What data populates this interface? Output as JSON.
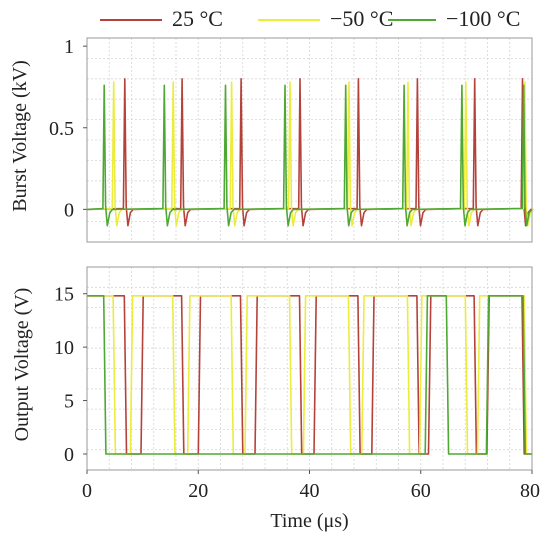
{
  "chart_data": [
    {
      "type": "line",
      "ylabel": "Burst Voltage (kV)",
      "xlim": [
        0,
        80
      ],
      "ylim": [
        -0.2,
        1.05
      ],
      "yticks": [
        0,
        0.5,
        1
      ],
      "ytick_labels": [
        "0",
        "0.5",
        "1"
      ],
      "grid": true,
      "series": [
        {
          "name": "25 °C",
          "color": "#b5423a",
          "pulse_times": [
            6.9,
            17.2,
            27.8,
            38.4,
            48.9,
            59.5,
            69.8,
            78.4
          ],
          "peak": 0.8
        },
        {
          "name": "−50 °C",
          "color": "#ecec3c",
          "pulse_times": [
            4.9,
            15.6,
            26.1,
            36.6,
            47.2,
            57.8,
            68.2,
            78.8
          ],
          "peak": 0.78
        },
        {
          "name": "−100 °C",
          "color": "#4fa834",
          "pulse_times": [
            3.2,
            14.0,
            25.0,
            35.7,
            46.6,
            57.1,
            67.5,
            78.6
          ],
          "peak": 0.76
        }
      ]
    },
    {
      "type": "line",
      "xlabel": "Time (μs)",
      "ylabel": "Output Voltage (V)",
      "xlim": [
        0,
        80
      ],
      "ylim": [
        -1.5,
        17.5
      ],
      "xticks": [
        0,
        20,
        40,
        60,
        80
      ],
      "xtick_labels": [
        "0",
        "20",
        "40",
        "60",
        "80"
      ],
      "yticks": [
        0,
        5,
        10,
        15
      ],
      "ytick_labels": [
        "0",
        "5",
        "10",
        "15"
      ],
      "grid": true,
      "series": [
        {
          "name": "25 °C",
          "color": "#b5423a",
          "high": 14.8,
          "low": 0,
          "rise_times": [
            0.0,
            9.9,
            20.2,
            30.4,
            41.0,
            51.4,
            61.6,
            72.1
          ],
          "fall_times": [
            6.9,
            17.2,
            27.8,
            38.4,
            48.9,
            59.5,
            69.8,
            78.4
          ]
        },
        {
          "name": "−50 °C",
          "color": "#ecec3c",
          "high": 14.8,
          "low": 0,
          "rise_times": [
            0.0,
            8.0,
            18.3,
            28.6,
            39.1,
            49.6,
            60.0,
            70.4
          ],
          "fall_times": [
            4.9,
            15.6,
            26.1,
            36.6,
            47.2,
            57.8,
            68.2,
            78.8
          ]
        },
        {
          "name": "−100 °C",
          "color": "#4fa834",
          "high": 14.8,
          "low": 0,
          "rise_times": [
            0.0,
            61.0,
            72.0
          ],
          "fall_times": [
            3.2,
            64.8,
            78.6
          ]
        }
      ]
    }
  ],
  "legend": [
    {
      "label": "25 °C",
      "color": "#b5423a"
    },
    {
      "label": "−50 °C",
      "color": "#ecec3c"
    },
    {
      "label": "−100 °C",
      "color": "#4fa834"
    }
  ]
}
